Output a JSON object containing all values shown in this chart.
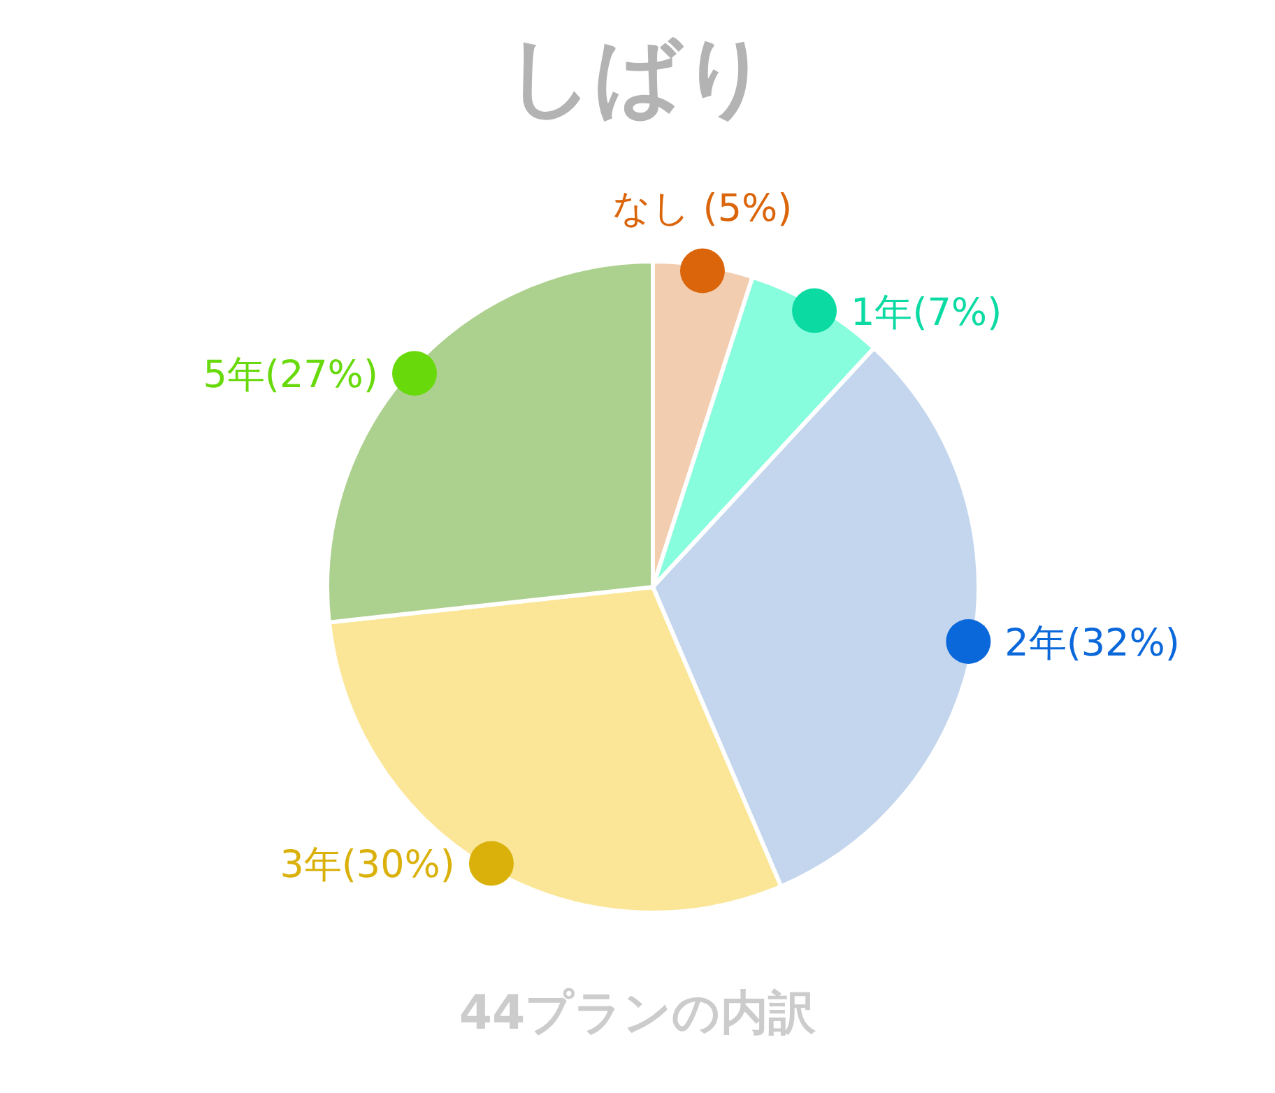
{
  "chart_data": {
    "type": "pie",
    "title": "しばり",
    "categories": [
      "なし",
      "1年",
      "2年",
      "3年",
      "5年"
    ],
    "values": [
      5,
      7,
      32,
      30,
      27
    ],
    "colors": [
      "#f3cdb0",
      "#88fddd",
      "#c3d6ed",
      "#fae696",
      "#acd08e"
    ],
    "value_labels": [
      " (5%)",
      "(7%)",
      "(32%)",
      "(30%)",
      "(27%)"
    ],
    "annotations": [
      "44プランの内訳"
    ]
  }
}
